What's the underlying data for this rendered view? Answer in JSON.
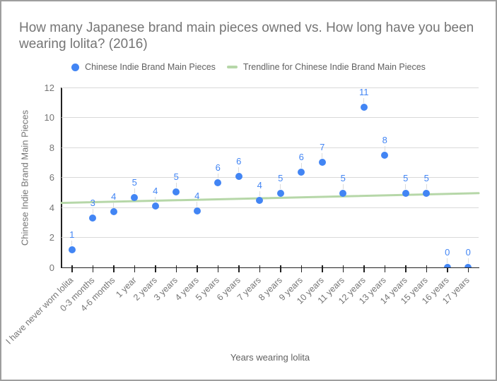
{
  "title": "How many Japanese brand main pieces owned vs. How long have you been wearing lolita? (2016)",
  "legend": [
    {
      "swatch": "point",
      "label": "Chinese Indie Brand Main Pieces"
    },
    {
      "swatch": "line",
      "label": "Trendline for Chinese Indie Brand Main Pieces"
    }
  ],
  "colors": {
    "series": "#4285f4",
    "trendline": "#b6d7a8",
    "title_text": "#757575",
    "axis_text": "#757575",
    "legend_text": "#616161",
    "gridline": "#d9d9d9",
    "axis_line": "#212121",
    "leader_line": "#dcdcdc",
    "frame_border": "#9e9e9e",
    "background": "#ffffff"
  },
  "chart_data": {
    "type": "scatter",
    "title": "How many Japanese brand main pieces owned vs. How long have you been wearing lolita? (2016)",
    "xlabel": "Years wearing lolita",
    "ylabel": "Chinese Indie Brand Main Pieces",
    "series_name": "Chinese Indie Brand Main Pieces",
    "categories": [
      "I have never worn lolita",
      "0-3 months",
      "4-6 months",
      "1 year",
      "2 years",
      "3 years",
      "4 years",
      "5 years",
      "6 years",
      "7 years",
      "8 years",
      "9 years",
      "10 years",
      "11 years",
      "12 years",
      "13 years",
      "14 years",
      "15 years",
      "16 years",
      "17 years"
    ],
    "values": [
      1.2,
      3.3,
      3.7,
      4.65,
      4.1,
      5.05,
      3.75,
      5.65,
      6.05,
      4.45,
      4.95,
      6.35,
      7.0,
      4.95,
      10.7,
      7.5,
      4.95,
      4.95,
      0,
      0
    ],
    "point_labels": [
      "1",
      "3",
      "4",
      "5",
      "4",
      "5",
      "4",
      "6",
      "6",
      "4",
      "5",
      "6",
      "7",
      "5",
      "11",
      "8",
      "5",
      "5",
      "0",
      "0"
    ],
    "ylim": [
      0,
      12
    ],
    "ytick_step": 2,
    "yticks": [
      "0",
      "2",
      "4",
      "6",
      "8",
      "10",
      "12"
    ],
    "grid": true,
    "legend_position": "top",
    "xtick_rotation": 45,
    "trendline": {
      "name": "Trendline for Chinese Indie Brand Main Pieces",
      "start": 4.3,
      "end": 4.95
    }
  }
}
